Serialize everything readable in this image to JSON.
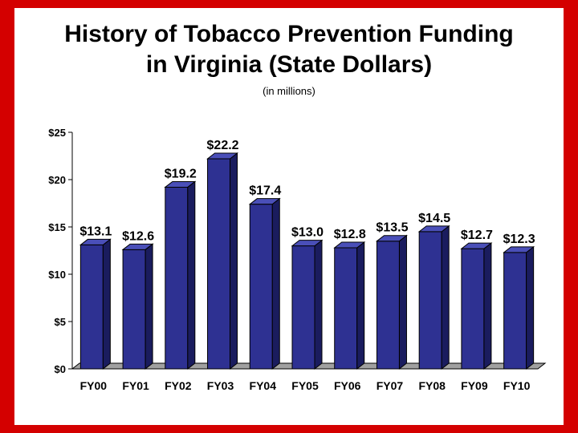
{
  "chart_data": {
    "type": "bar",
    "title_lines": [
      "History of Tobacco Prevention Funding",
      "in Virginia (State Dollars)"
    ],
    "subtitle": "(in millions)",
    "categories": [
      "FY00",
      "FY01",
      "FY02",
      "FY03",
      "FY04",
      "FY05",
      "FY06",
      "FY07",
      "FY08",
      "FY09",
      "FY10"
    ],
    "values": [
      13.1,
      12.6,
      19.2,
      22.2,
      17.4,
      13.0,
      12.8,
      13.5,
      14.5,
      12.7,
      12.3
    ],
    "value_labels": [
      "$13.1",
      "$12.6",
      "$19.2",
      "$22.2",
      "$17.4",
      "$13.0",
      "$12.8",
      "$13.5",
      "$14.5",
      "$12.7",
      "$12.3"
    ],
    "yticks": [
      0,
      5,
      10,
      15,
      20,
      25
    ],
    "ytick_labels": [
      "$0",
      "$5",
      "$10",
      "$15",
      "$20",
      "$25"
    ],
    "ylim": [
      0,
      25
    ],
    "colors": {
      "bar_front": "#2e3192",
      "bar_side": "#1a1c5e",
      "bar_top": "#4a4fb8",
      "floor": "#a0a0a0",
      "frame": "#d40000"
    }
  }
}
